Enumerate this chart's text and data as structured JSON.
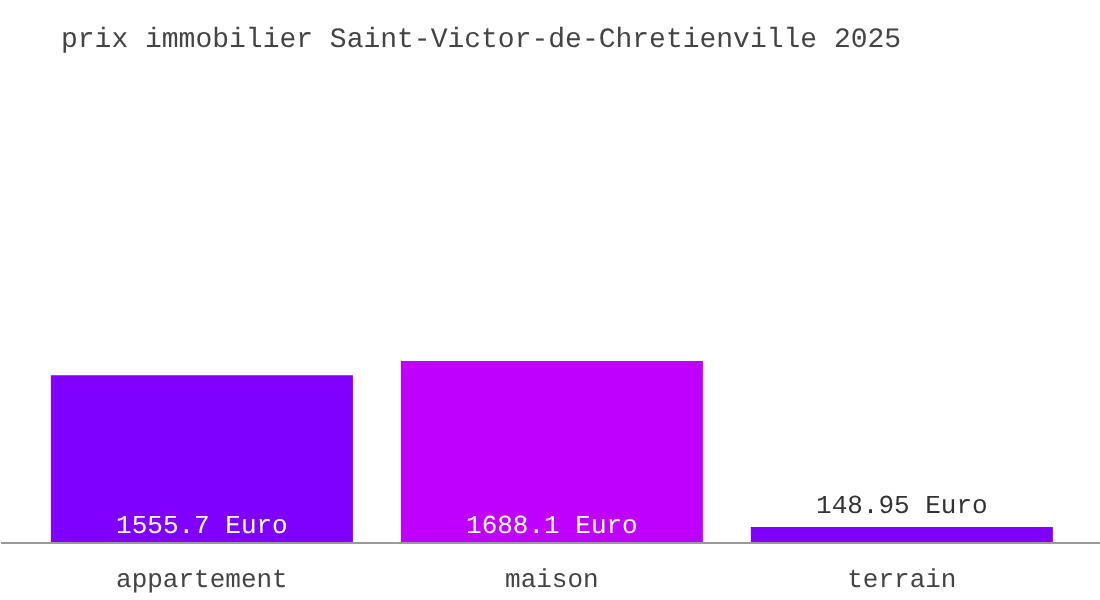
{
  "chart_data": {
    "type": "bar",
    "title": "prix immobilier Saint-Victor-de-Chretienville 2025",
    "categories": [
      "appartement",
      "maison",
      "terrain"
    ],
    "values": [
      1555.7,
      1688.1,
      148.95
    ],
    "colors": [
      "#8000ff",
      "#c000ff",
      "#8000ff"
    ],
    "value_labels": [
      "1555.7 Euro",
      "1688.1 Euro",
      "148.95 Euro"
    ],
    "grid": false
  }
}
